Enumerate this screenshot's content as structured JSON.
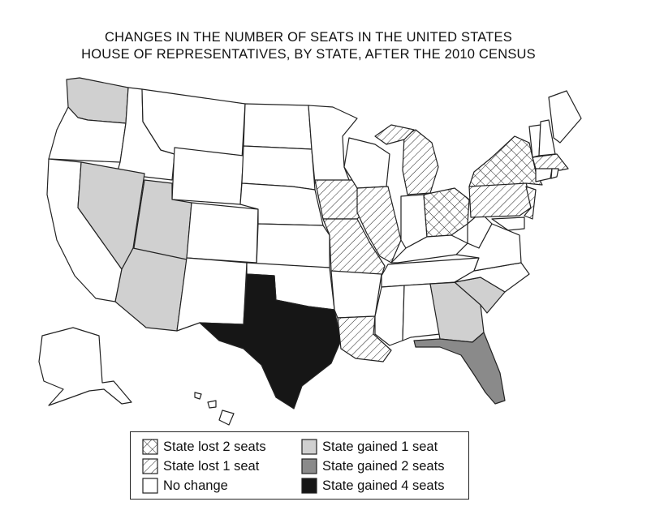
{
  "title": {
    "line1": "CHANGES IN THE NUMBER OF SEATS IN THE UNITED STATES",
    "line2": "HOUSE OF REPRESENTATIVES, BY STATE, AFTER THE 2010 CENSUS"
  },
  "legend": {
    "lost2": "State lost 2 seats",
    "lost1": "State lost 1 seat",
    "none": "No change",
    "gain1": "State gained 1 seat",
    "gain2": "State gained 2 seats",
    "gain4": "State gained 4 seats"
  },
  "fills": {
    "lost2": "crosshatch",
    "lost1": "diagonal-hatch",
    "none": "#ffffff",
    "gain1": "#d0d0d0",
    "gain2": "#8a8a8a",
    "gain4": "#161616"
  }
}
